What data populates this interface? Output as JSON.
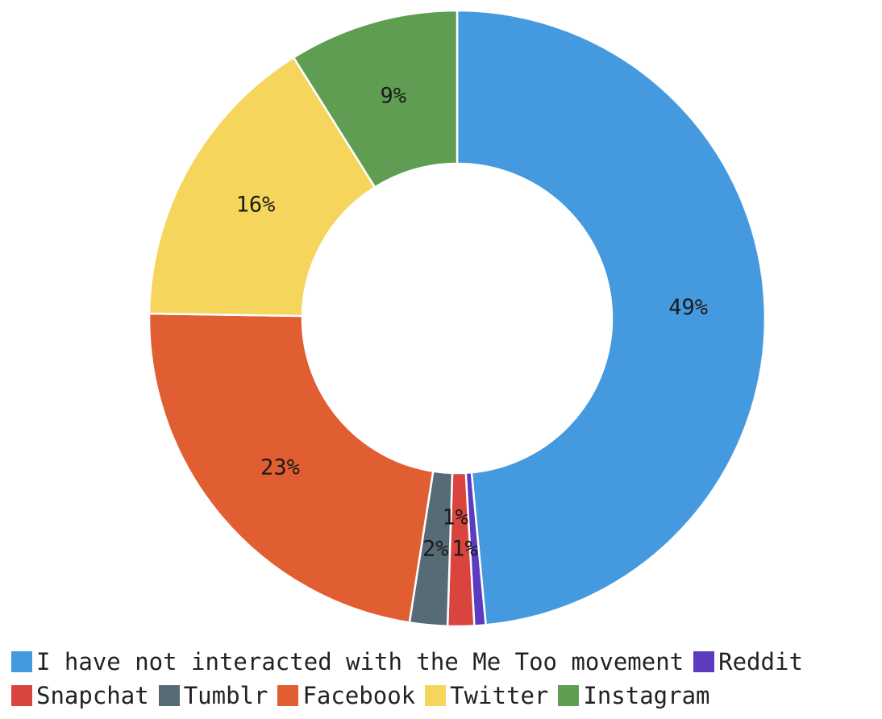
{
  "chart_data": {
    "type": "pie",
    "variant": "donut",
    "slices": [
      {
        "label": "I have not interacted with the Me Too movement",
        "value": 49,
        "display": "49%",
        "color": "#4599df"
      },
      {
        "label": "Reddit",
        "value": 0.6,
        "display": "1%",
        "color": "#5b3bbf"
      },
      {
        "label": "Snapchat",
        "value": 1.4,
        "display": "1%",
        "color": "#d9443e"
      },
      {
        "label": "Tumblr",
        "value": 2,
        "display": "2%",
        "color": "#576b77"
      },
      {
        "label": "Facebook",
        "value": 23,
        "display": "23%",
        "color": "#e05e32"
      },
      {
        "label": "Twitter",
        "value": 16,
        "display": "16%",
        "color": "#f6d55c"
      },
      {
        "label": "Instagram",
        "value": 9,
        "display": "9%",
        "color": "#5f9e52"
      }
    ],
    "legend_position": "bottom",
    "title": ""
  }
}
